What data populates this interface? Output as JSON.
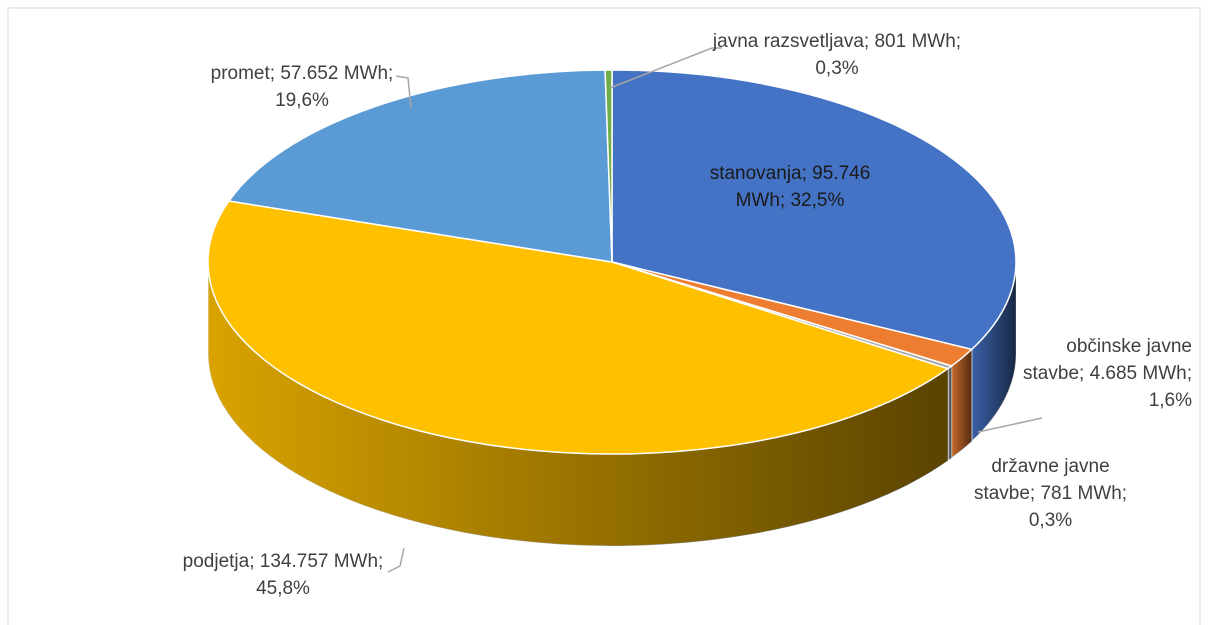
{
  "chart_data": {
    "type": "pie",
    "categories": [
      "stanovanja",
      "občinske javne stavbe",
      "državne javne stavbe",
      "podjetja",
      "promet",
      "javna razsvetljava"
    ],
    "values": [
      95746,
      4685,
      781,
      134757,
      57652,
      801
    ],
    "value_labels": [
      "stanovanja; 95.746 MWh; 32,5%",
      "občinske javne stavbe; 4.685 MWh; 1,6%",
      "državne javne stavbe; 781 MWh; 0,3%",
      "podjetja; 134.757 MWh; 45,8%",
      "promet; 57.652 MWh; 19,6%",
      "javna razsvetljava; 801 MWh; 0,3%"
    ],
    "colors": [
      "#4472c4",
      "#ed7d31",
      "#a5a5a5",
      "#ffc000",
      "#5b9bd5",
      "#70ad47"
    ]
  }
}
